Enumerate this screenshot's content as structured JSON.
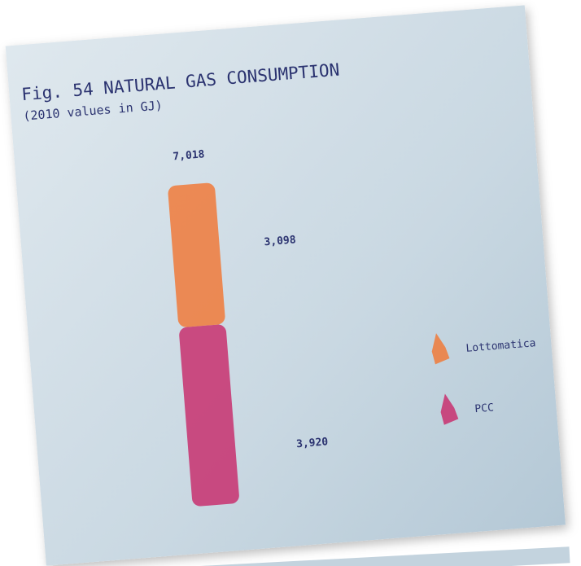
{
  "chart_data": {
    "type": "stacked-bar",
    "title": "Fig. 54 NATURAL GAS CONSUMPTION",
    "subtitle": "(2010 values in GJ)",
    "total": {
      "value": 7018,
      "label": "7,018"
    },
    "series": [
      {
        "name": "Lottomatica",
        "color": "#f07a3a",
        "values": [
          3098
        ],
        "value_labels": [
          "3,098"
        ]
      },
      {
        "name": "PCC",
        "color": "#c8306e",
        "values": [
          3920
        ],
        "value_labels": [
          "3,920"
        ]
      }
    ]
  }
}
